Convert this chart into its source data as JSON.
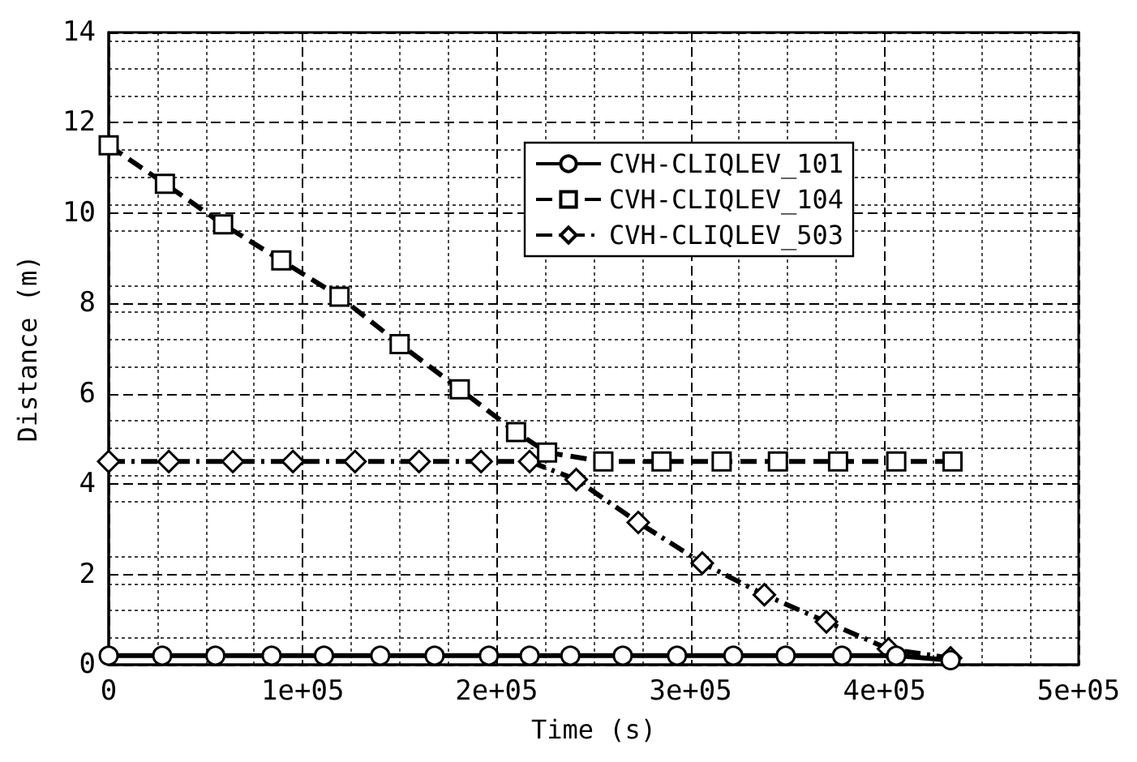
{
  "chart_data": {
    "type": "line",
    "xlabel": "Time (s)",
    "ylabel": "Distance (m)",
    "xlim": [
      0,
      500000
    ],
    "xticks": [
      0,
      {
        "value": 100000,
        "label": "1e+05"
      },
      {
        "value": 200000,
        "label": "2e+05"
      },
      {
        "value": 300000,
        "label": "3e+05"
      },
      {
        "value": 400000,
        "label": "4e+05"
      },
      {
        "value": 500000,
        "label": "5e+05"
      }
    ],
    "ylim": [
      0,
      14
    ],
    "yticks": [
      0,
      2,
      4,
      6,
      8,
      10,
      12,
      14
    ],
    "grid": true,
    "legend": "top right",
    "series": [
      {
        "name": "CVH-CLIQLEV_101",
        "color": "#000000",
        "marker": "circle",
        "line_style": "solid",
        "x": [
          0,
          27600,
          55000,
          84000,
          111000,
          140000,
          168000,
          196000,
          217000,
          238000,
          265000,
          293000,
          322000,
          349000,
          378000,
          406000,
          434000
        ],
        "values": [
          0.2,
          0.2,
          0.2,
          0.2,
          0.2,
          0.2,
          0.2,
          0.2,
          0.2,
          0.2,
          0.2,
          0.2,
          0.2,
          0.2,
          0.2,
          0.2,
          0.1
        ]
      },
      {
        "name": "CVH-CLIQLEV_104",
        "color": "#000000",
        "marker": "square",
        "line_style": "dashed",
        "x": [
          0,
          29000,
          59000,
          89000,
          119000,
          150000,
          181000,
          210000,
          226000,
          255000,
          285000,
          316000,
          345000,
          376000,
          406000,
          435000
        ],
        "values": [
          11.5,
          10.65,
          9.75,
          8.95,
          8.15,
          7.1,
          6.1,
          5.15,
          4.7,
          4.5,
          4.5,
          4.5,
          4.5,
          4.5,
          4.5,
          4.5
        ]
      },
      {
        "name": "CVH-CLIQLEV_503",
        "color": "#000000",
        "marker": "diamond",
        "line_style": "dashdot",
        "x": [
          0,
          31000,
          64000,
          95000,
          127000,
          160000,
          192000,
          217000,
          241000,
          273000,
          306000,
          338000,
          370000,
          402000,
          434000
        ],
        "values": [
          4.5,
          4.5,
          4.5,
          4.5,
          4.5,
          4.5,
          4.5,
          4.5,
          4.1,
          3.15,
          2.25,
          1.55,
          0.95,
          0.35,
          0.15
        ]
      }
    ]
  }
}
